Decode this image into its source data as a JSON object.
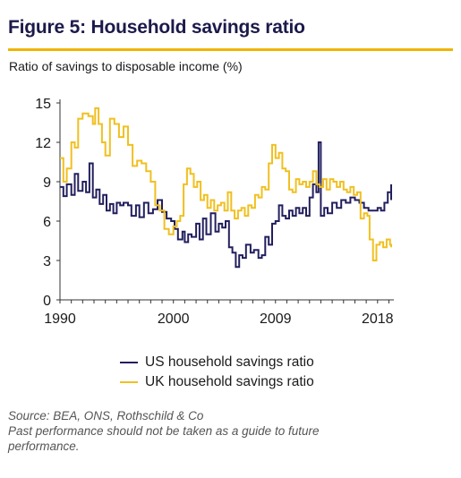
{
  "header": {
    "title": "Figure 5: Household savings ratio",
    "subtitle": "Ratio of savings to disposable income (%)"
  },
  "colors": {
    "title": "#1c1a4a",
    "rule": "#f0b400"
  },
  "chart_data": {
    "type": "line",
    "ylim": [
      0,
      15
    ],
    "yticks": [
      0,
      3,
      6,
      9,
      12,
      15
    ],
    "xlim": [
      1990,
      2019.2
    ],
    "xticks": [
      1990,
      2000,
      2009,
      2018
    ],
    "grid": false,
    "legend_position": "bottom",
    "series": [
      {
        "name": "US household savings ratio",
        "color": "#221f5e",
        "points": [
          [
            1990.0,
            8.6
          ],
          [
            1990.3,
            7.9
          ],
          [
            1990.6,
            8.8
          ],
          [
            1991.0,
            8.0
          ],
          [
            1991.3,
            9.6
          ],
          [
            1991.6,
            8.3
          ],
          [
            1992.0,
            9.0
          ],
          [
            1992.3,
            8.2
          ],
          [
            1992.6,
            10.4
          ],
          [
            1992.9,
            7.8
          ],
          [
            1993.2,
            8.4
          ],
          [
            1993.5,
            7.3
          ],
          [
            1993.8,
            8.0
          ],
          [
            1994.1,
            6.8
          ],
          [
            1994.4,
            7.3
          ],
          [
            1994.7,
            6.6
          ],
          [
            1995.0,
            7.4
          ],
          [
            1995.3,
            7.2
          ],
          [
            1995.6,
            7.4
          ],
          [
            1996.0,
            7.2
          ],
          [
            1996.3,
            6.4
          ],
          [
            1996.7,
            7.2
          ],
          [
            1997.0,
            6.3
          ],
          [
            1997.4,
            7.4
          ],
          [
            1997.8,
            6.6
          ],
          [
            1998.2,
            6.9
          ],
          [
            1998.6,
            7.6
          ],
          [
            1999.0,
            6.7
          ],
          [
            1999.4,
            6.2
          ],
          [
            1999.8,
            6.0
          ],
          [
            2000.1,
            5.4
          ],
          [
            2000.4,
            4.6
          ],
          [
            2000.8,
            5.2
          ],
          [
            2001.0,
            4.4
          ],
          [
            2001.3,
            5.0
          ],
          [
            2001.6,
            4.8
          ],
          [
            2002.0,
            5.8
          ],
          [
            2002.3,
            4.6
          ],
          [
            2002.6,
            6.2
          ],
          [
            2002.9,
            5.0
          ],
          [
            2003.3,
            6.6
          ],
          [
            2003.7,
            5.2
          ],
          [
            2004.0,
            5.8
          ],
          [
            2004.3,
            5.5
          ],
          [
            2004.6,
            6.0
          ],
          [
            2004.9,
            4.0
          ],
          [
            2005.2,
            3.6
          ],
          [
            2005.5,
            2.5
          ],
          [
            2005.8,
            3.4
          ],
          [
            2006.1,
            3.2
          ],
          [
            2006.4,
            4.2
          ],
          [
            2006.8,
            3.6
          ],
          [
            2007.1,
            3.8
          ],
          [
            2007.5,
            3.2
          ],
          [
            2007.8,
            3.4
          ],
          [
            2008.1,
            4.8
          ],
          [
            2008.4,
            4.2
          ],
          [
            2008.7,
            5.8
          ],
          [
            2009.0,
            6.0
          ],
          [
            2009.3,
            7.2
          ],
          [
            2009.6,
            6.4
          ],
          [
            2009.9,
            6.2
          ],
          [
            2010.2,
            6.8
          ],
          [
            2010.5,
            6.4
          ],
          [
            2010.8,
            7.0
          ],
          [
            2011.1,
            6.6
          ],
          [
            2011.4,
            7.0
          ],
          [
            2011.7,
            6.4
          ],
          [
            2012.0,
            7.8
          ],
          [
            2012.3,
            8.8
          ],
          [
            2012.6,
            8.2
          ],
          [
            2012.8,
            12.0
          ],
          [
            2013.0,
            6.4
          ],
          [
            2013.3,
            7.0
          ],
          [
            2013.6,
            6.6
          ],
          [
            2014.0,
            7.4
          ],
          [
            2014.4,
            7.0
          ],
          [
            2014.8,
            7.6
          ],
          [
            2015.2,
            7.4
          ],
          [
            2015.6,
            7.8
          ],
          [
            2016.0,
            7.6
          ],
          [
            2016.4,
            7.4
          ],
          [
            2016.8,
            7.0
          ],
          [
            2017.2,
            6.8
          ],
          [
            2017.6,
            6.8
          ],
          [
            2018.0,
            7.0
          ],
          [
            2018.3,
            6.8
          ],
          [
            2018.6,
            7.4
          ],
          [
            2018.9,
            8.2
          ],
          [
            2019.2,
            7.6
          ],
          [
            2019.5,
            8.8
          ],
          [
            2019.8,
            8.2
          ],
          [
            2020.1,
            8.0
          ]
        ]
      },
      {
        "name": "UK household savings ratio",
        "color": "#f0c020",
        "points": [
          [
            1990.0,
            10.8
          ],
          [
            1990.3,
            9.0
          ],
          [
            1990.6,
            10.0
          ],
          [
            1991.0,
            12.0
          ],
          [
            1991.3,
            11.6
          ],
          [
            1991.6,
            13.8
          ],
          [
            1992.0,
            14.2
          ],
          [
            1992.5,
            14.0
          ],
          [
            1992.9,
            13.4
          ],
          [
            1993.1,
            14.6
          ],
          [
            1993.4,
            13.4
          ],
          [
            1993.7,
            12.0
          ],
          [
            1994.0,
            11.0
          ],
          [
            1994.4,
            13.8
          ],
          [
            1994.8,
            13.4
          ],
          [
            1995.2,
            12.4
          ],
          [
            1995.6,
            13.2
          ],
          [
            1996.0,
            11.8
          ],
          [
            1996.4,
            10.2
          ],
          [
            1996.8,
            10.6
          ],
          [
            1997.2,
            10.4
          ],
          [
            1997.6,
            9.8
          ],
          [
            1998.0,
            9.0
          ],
          [
            1998.4,
            7.2
          ],
          [
            1998.8,
            6.8
          ],
          [
            1999.2,
            5.4
          ],
          [
            1999.6,
            5.0
          ],
          [
            2000.0,
            5.6
          ],
          [
            2000.3,
            6.0
          ],
          [
            2000.6,
            6.4
          ],
          [
            2000.9,
            8.8
          ],
          [
            2001.2,
            10.0
          ],
          [
            2001.5,
            9.6
          ],
          [
            2001.8,
            8.6
          ],
          [
            2002.1,
            9.0
          ],
          [
            2002.4,
            7.6
          ],
          [
            2002.7,
            8.0
          ],
          [
            2003.0,
            7.0
          ],
          [
            2003.3,
            7.6
          ],
          [
            2003.6,
            6.8
          ],
          [
            2003.9,
            7.2
          ],
          [
            2004.2,
            7.4
          ],
          [
            2004.5,
            6.8
          ],
          [
            2004.8,
            8.2
          ],
          [
            2005.1,
            6.8
          ],
          [
            2005.4,
            6.2
          ],
          [
            2005.7,
            6.8
          ],
          [
            2006.0,
            7.0
          ],
          [
            2006.3,
            6.4
          ],
          [
            2006.6,
            7.2
          ],
          [
            2006.9,
            7.0
          ],
          [
            2007.2,
            8.0
          ],
          [
            2007.5,
            7.8
          ],
          [
            2007.8,
            8.6
          ],
          [
            2008.1,
            8.4
          ],
          [
            2008.4,
            10.4
          ],
          [
            2008.7,
            11.8
          ],
          [
            2009.0,
            10.8
          ],
          [
            2009.3,
            11.2
          ],
          [
            2009.6,
            10.0
          ],
          [
            2009.9,
            9.8
          ],
          [
            2010.2,
            8.4
          ],
          [
            2010.5,
            8.2
          ],
          [
            2010.8,
            9.2
          ],
          [
            2011.1,
            8.8
          ],
          [
            2011.4,
            9.0
          ],
          [
            2011.7,
            8.6
          ],
          [
            2012.0,
            9.0
          ],
          [
            2012.3,
            9.8
          ],
          [
            2012.6,
            8.8
          ],
          [
            2012.9,
            8.6
          ],
          [
            2013.2,
            9.2
          ],
          [
            2013.5,
            8.4
          ],
          [
            2013.8,
            9.2
          ],
          [
            2014.1,
            9.0
          ],
          [
            2014.4,
            8.6
          ],
          [
            2014.7,
            9.0
          ],
          [
            2015.0,
            8.4
          ],
          [
            2015.3,
            8.2
          ],
          [
            2015.6,
            8.6
          ],
          [
            2015.9,
            8.0
          ],
          [
            2016.2,
            8.2
          ],
          [
            2016.5,
            6.2
          ],
          [
            2016.8,
            6.6
          ],
          [
            2017.1,
            6.4
          ],
          [
            2017.3,
            4.6
          ],
          [
            2017.6,
            3.0
          ],
          [
            2017.9,
            4.2
          ],
          [
            2018.2,
            4.4
          ],
          [
            2018.5,
            4.0
          ],
          [
            2018.8,
            4.6
          ],
          [
            2019.1,
            4.2
          ],
          [
            2019.4,
            4.0
          ],
          [
            2019.7,
            4.2
          ],
          [
            2020.1,
            4.2
          ]
        ]
      }
    ]
  },
  "footer": {
    "source_line1": "Source: BEA, ONS, Rothschild & Co",
    "source_line2": "Past performance should not be taken as a guide to future",
    "source_line3": "performance."
  }
}
